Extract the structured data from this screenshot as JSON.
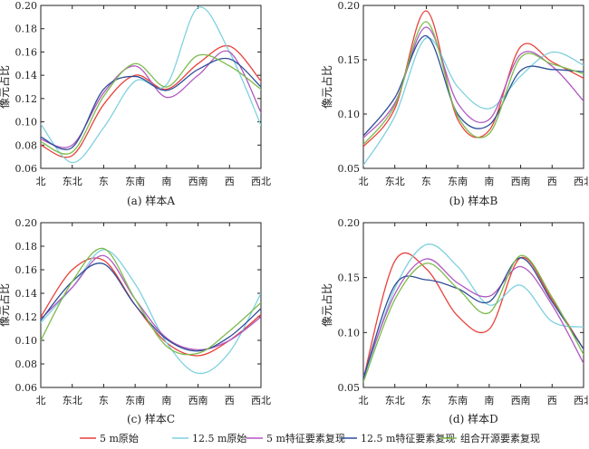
{
  "colors": {
    "s5_orig": "#e8413a",
    "s125_orig": "#7fd1df",
    "s5_feat": "#b158c1",
    "s125_feat": "#2e4e98",
    "combo": "#7dbb4c"
  },
  "legend": [
    {
      "key": "s5_orig",
      "label": "5 m原始"
    },
    {
      "key": "s125_orig",
      "label": "12.5 m原始"
    },
    {
      "key": "s5_feat",
      "label": "5 m特征要素复现"
    },
    {
      "key": "s125_feat",
      "label": "12.5 m特征要素复现"
    },
    {
      "key": "combo",
      "label": "组合开源要素复现"
    }
  ],
  "chart_data": [
    {
      "type": "line",
      "caption": "(a) 样本A",
      "ylabel": "像元占比",
      "categories": [
        "北",
        "东北",
        "东",
        "东南",
        "南",
        "西南",
        "西",
        "西北"
      ],
      "ylim": [
        0.06,
        0.2
      ],
      "yticks": [
        "0.06",
        "0.08",
        "0.10",
        "0.12",
        "0.14",
        "0.16",
        "0.18",
        "0.20"
      ],
      "series": [
        {
          "key": "s5_orig",
          "values": [
            0.08,
            0.071,
            0.115,
            0.14,
            0.128,
            0.15,
            0.165,
            0.135
          ]
        },
        {
          "key": "s125_orig",
          "values": [
            0.098,
            0.065,
            0.095,
            0.135,
            0.132,
            0.198,
            0.16,
            0.097
          ]
        },
        {
          "key": "s5_feat",
          "values": [
            0.085,
            0.08,
            0.125,
            0.148,
            0.121,
            0.14,
            0.16,
            0.108
          ]
        },
        {
          "key": "s125_feat",
          "values": [
            0.087,
            0.078,
            0.128,
            0.139,
            0.127,
            0.145,
            0.154,
            0.13
          ]
        },
        {
          "key": "combo",
          "values": [
            0.083,
            0.074,
            0.122,
            0.15,
            0.13,
            0.157,
            0.148,
            0.128
          ]
        }
      ]
    },
    {
      "type": "line",
      "caption": "(b) 样本B",
      "ylabel": "像元占比",
      "categories": [
        "北",
        "东北",
        "东",
        "东南",
        "南",
        "西南",
        "西",
        "西北"
      ],
      "ylim": [
        0.05,
        0.2
      ],
      "yticks": [
        "0.05",
        "0.10",
        "0.15",
        "0.20"
      ],
      "series": [
        {
          "key": "s5_orig",
          "values": [
            0.07,
            0.105,
            0.195,
            0.095,
            0.085,
            0.162,
            0.148,
            0.133
          ]
        },
        {
          "key": "s125_orig",
          "values": [
            0.053,
            0.098,
            0.17,
            0.125,
            0.105,
            0.135,
            0.157,
            0.145
          ]
        },
        {
          "key": "s5_feat",
          "values": [
            0.078,
            0.11,
            0.18,
            0.11,
            0.095,
            0.155,
            0.144,
            0.112
          ]
        },
        {
          "key": "s125_feat",
          "values": [
            0.08,
            0.115,
            0.172,
            0.1,
            0.09,
            0.14,
            0.141,
            0.139
          ]
        },
        {
          "key": "combo",
          "values": [
            0.072,
            0.108,
            0.185,
            0.098,
            0.082,
            0.152,
            0.146,
            0.137
          ]
        }
      ]
    },
    {
      "type": "line",
      "caption": "(c) 样本C",
      "ylabel": "像元占比",
      "categories": [
        "北",
        "东北",
        "东",
        "东南",
        "南",
        "西南",
        "西",
        "西北"
      ],
      "ylim": [
        0.06,
        0.2
      ],
      "yticks": [
        "0.06",
        "0.08",
        "0.10",
        "0.12",
        "0.14",
        "0.16",
        "0.18",
        "0.20"
      ],
      "series": [
        {
          "key": "s5_orig",
          "values": [
            0.12,
            0.16,
            0.168,
            0.13,
            0.098,
            0.087,
            0.1,
            0.122
          ]
        },
        {
          "key": "s125_orig",
          "values": [
            0.115,
            0.145,
            0.177,
            0.148,
            0.098,
            0.072,
            0.09,
            0.14
          ]
        },
        {
          "key": "s5_feat",
          "values": [
            0.118,
            0.145,
            0.172,
            0.135,
            0.102,
            0.092,
            0.1,
            0.12
          ]
        },
        {
          "key": "s125_feat",
          "values": [
            0.117,
            0.15,
            0.165,
            0.13,
            0.101,
            0.091,
            0.103,
            0.127
          ]
        },
        {
          "key": "combo",
          "values": [
            0.1,
            0.15,
            0.178,
            0.135,
            0.095,
            0.089,
            0.108,
            0.132
          ]
        }
      ]
    },
    {
      "type": "line",
      "caption": "(d) 样本D",
      "ylabel": "像元占比",
      "categories": [
        "北",
        "东北",
        "东",
        "东南",
        "南",
        "西南",
        "西",
        "西北"
      ],
      "ylim": [
        0.05,
        0.2
      ],
      "yticks": [
        "0.05",
        "0.10",
        "0.15",
        "0.20"
      ],
      "series": [
        {
          "key": "s5_orig",
          "values": [
            0.058,
            0.165,
            0.158,
            0.115,
            0.103,
            0.168,
            0.13,
            0.085
          ]
        },
        {
          "key": "s125_orig",
          "values": [
            0.055,
            0.14,
            0.18,
            0.16,
            0.125,
            0.143,
            0.11,
            0.105
          ]
        },
        {
          "key": "s5_feat",
          "values": [
            0.06,
            0.135,
            0.167,
            0.145,
            0.133,
            0.16,
            0.125,
            0.072
          ]
        },
        {
          "key": "s125_feat",
          "values": [
            0.058,
            0.143,
            0.148,
            0.14,
            0.128,
            0.168,
            0.128,
            0.085
          ]
        },
        {
          "key": "combo",
          "values": [
            0.055,
            0.13,
            0.163,
            0.14,
            0.118,
            0.17,
            0.132,
            0.08
          ]
        }
      ]
    }
  ]
}
